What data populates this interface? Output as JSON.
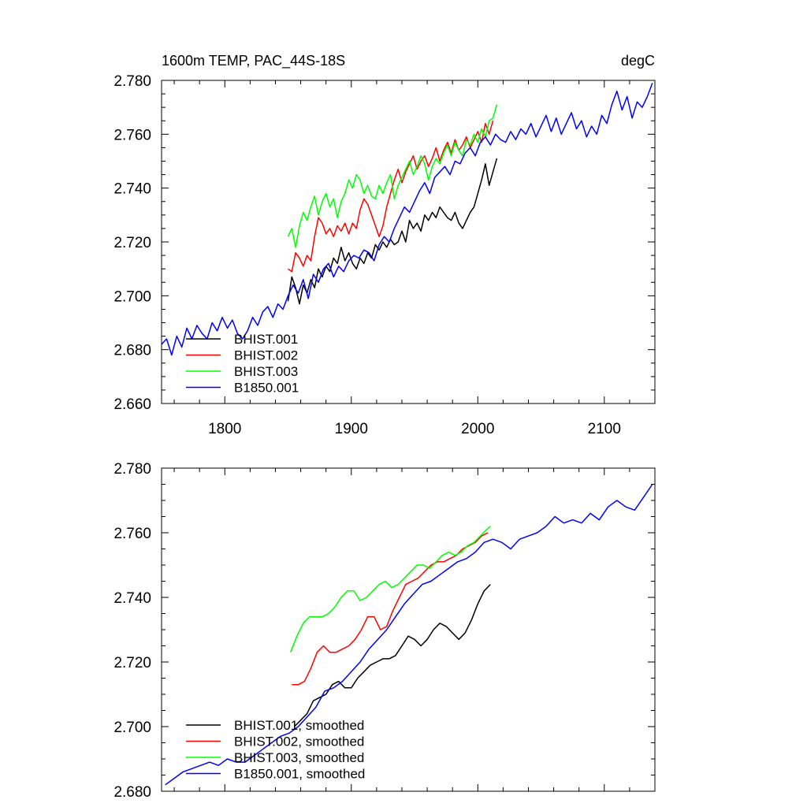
{
  "chart_data": [
    {
      "type": "line",
      "title_left": "1600m TEMP, PAC_44S-18S",
      "title_right": "degC",
      "xlabel": "",
      "ylabel": "",
      "xlim": [
        1750,
        2140
      ],
      "ylim": [
        2.66,
        2.78
      ],
      "xticks": [
        1800,
        1900,
        2000,
        2100
      ],
      "xtick_labels": [
        "1800",
        "1900",
        "2000",
        "2100"
      ],
      "yticks": [
        2.66,
        2.68,
        2.7,
        2.72,
        2.74,
        2.76,
        2.78
      ],
      "ytick_labels": [
        "2.660",
        "2.680",
        "2.700",
        "2.720",
        "2.740",
        "2.760",
        "2.780"
      ],
      "grid": false,
      "legend_position": "bottom-left",
      "series": [
        {
          "name": "BHIST.001",
          "color": "#000000",
          "x": [
            1850,
            1853,
            1856,
            1859,
            1862,
            1865,
            1868,
            1871,
            1874,
            1877,
            1880,
            1883,
            1886,
            1889,
            1892,
            1895,
            1898,
            1901,
            1904,
            1907,
            1910,
            1913,
            1916,
            1919,
            1922,
            1925,
            1928,
            1931,
            1934,
            1937,
            1940,
            1943,
            1946,
            1949,
            1952,
            1955,
            1958,
            1961,
            1964,
            1967,
            1970,
            1973,
            1976,
            1979,
            1982,
            1985,
            1988,
            1991,
            1994,
            1997,
            2000,
            2003,
            2006,
            2009,
            2012,
            2015
          ],
          "y": [
            2.698,
            2.707,
            2.703,
            2.697,
            2.704,
            2.701,
            2.706,
            2.703,
            2.71,
            2.707,
            2.711,
            2.709,
            2.714,
            2.712,
            2.718,
            2.713,
            2.716,
            2.712,
            2.71,
            2.714,
            2.712,
            2.716,
            2.714,
            2.719,
            2.717,
            2.72,
            2.718,
            2.721,
            2.719,
            2.72,
            2.724,
            2.72,
            2.728,
            2.725,
            2.727,
            2.724,
            2.73,
            2.728,
            2.731,
            2.729,
            2.733,
            2.731,
            2.729,
            2.728,
            2.731,
            2.727,
            2.725,
            2.728,
            2.731,
            2.733,
            2.738,
            2.743,
            2.749,
            2.741,
            2.746,
            2.751
          ]
        },
        {
          "name": "BHIST.002",
          "color": "#ff0000",
          "x": [
            1850,
            1853,
            1856,
            1859,
            1862,
            1865,
            1868,
            1871,
            1874,
            1877,
            1880,
            1883,
            1886,
            1889,
            1892,
            1895,
            1898,
            1901,
            1904,
            1907,
            1910,
            1913,
            1916,
            1919,
            1922,
            1925,
            1928,
            1931,
            1934,
            1937,
            1940,
            1943,
            1946,
            1949,
            1952,
            1955,
            1958,
            1961,
            1964,
            1967,
            1970,
            1973,
            1976,
            1979,
            1982,
            1985,
            1988,
            1991,
            1994,
            1997,
            2000,
            2003,
            2006,
            2009,
            2012
          ],
          "y": [
            2.71,
            2.709,
            2.716,
            2.714,
            2.711,
            2.715,
            2.713,
            2.722,
            2.729,
            2.727,
            2.723,
            2.725,
            2.722,
            2.726,
            2.724,
            2.727,
            2.723,
            2.727,
            2.725,
            2.732,
            2.736,
            2.734,
            2.73,
            2.726,
            2.722,
            2.726,
            2.733,
            2.738,
            2.743,
            2.747,
            2.742,
            2.746,
            2.749,
            2.752,
            2.747,
            2.75,
            2.752,
            2.748,
            2.751,
            2.755,
            2.75,
            2.754,
            2.757,
            2.753,
            2.758,
            2.754,
            2.756,
            2.759,
            2.755,
            2.758,
            2.761,
            2.757,
            2.764,
            2.76,
            2.765
          ]
        },
        {
          "name": "BHIST.003",
          "color": "#00ff00",
          "x": [
            1850,
            1853,
            1856,
            1859,
            1862,
            1865,
            1868,
            1871,
            1874,
            1877,
            1880,
            1883,
            1886,
            1889,
            1892,
            1895,
            1898,
            1901,
            1904,
            1907,
            1910,
            1913,
            1916,
            1919,
            1922,
            1925,
            1928,
            1931,
            1934,
            1937,
            1940,
            1943,
            1946,
            1949,
            1952,
            1955,
            1958,
            1961,
            1964,
            1967,
            1970,
            1973,
            1976,
            1979,
            1982,
            1985,
            1988,
            1991,
            1994,
            1997,
            2000,
            2003,
            2006,
            2009,
            2012,
            2015
          ],
          "y": [
            2.722,
            2.725,
            2.718,
            2.726,
            2.731,
            2.728,
            2.733,
            2.737,
            2.73,
            2.735,
            2.738,
            2.733,
            2.736,
            2.729,
            2.735,
            2.738,
            2.743,
            2.74,
            2.745,
            2.743,
            2.738,
            2.741,
            2.737,
            2.736,
            2.741,
            2.738,
            2.742,
            2.745,
            2.736,
            2.741,
            2.744,
            2.747,
            2.75,
            2.745,
            2.748,
            2.752,
            2.749,
            2.743,
            2.748,
            2.751,
            2.749,
            2.753,
            2.756,
            2.752,
            2.757,
            2.754,
            2.752,
            2.758,
            2.756,
            2.76,
            2.757,
            2.762,
            2.759,
            2.765,
            2.766,
            2.771
          ]
        },
        {
          "name": "B1850.001",
          "color": "#0000ff",
          "x": [
            1750,
            1754,
            1758,
            1762,
            1766,
            1770,
            1774,
            1778,
            1782,
            1786,
            1790,
            1794,
            1798,
            1802,
            1806,
            1810,
            1814,
            1818,
            1822,
            1826,
            1830,
            1834,
            1838,
            1842,
            1846,
            1850,
            1854,
            1858,
            1862,
            1866,
            1870,
            1874,
            1878,
            1882,
            1886,
            1890,
            1894,
            1898,
            1902,
            1906,
            1910,
            1914,
            1918,
            1922,
            1926,
            1930,
            1934,
            1938,
            1942,
            1946,
            1950,
            1954,
            1958,
            1962,
            1966,
            1970,
            1974,
            1978,
            1982,
            1986,
            1990,
            1994,
            1998,
            2002,
            2006,
            2010,
            2014,
            2018,
            2022,
            2026,
            2030,
            2034,
            2038,
            2042,
            2046,
            2050,
            2054,
            2058,
            2062,
            2066,
            2070,
            2074,
            2078,
            2082,
            2086,
            2090,
            2094,
            2098,
            2102,
            2106,
            2110,
            2114,
            2118,
            2122,
            2126,
            2130,
            2134,
            2138
          ],
          "y": [
            2.682,
            2.684,
            2.678,
            2.685,
            2.681,
            2.688,
            2.684,
            2.689,
            2.686,
            2.684,
            2.69,
            2.687,
            2.692,
            2.688,
            2.691,
            2.686,
            2.684,
            2.687,
            2.692,
            2.689,
            2.694,
            2.696,
            2.692,
            2.697,
            2.695,
            2.7,
            2.704,
            2.701,
            2.706,
            2.699,
            2.708,
            2.705,
            2.71,
            2.712,
            2.707,
            2.711,
            2.709,
            2.713,
            2.715,
            2.714,
            2.717,
            2.716,
            2.713,
            2.719,
            2.722,
            2.72,
            2.725,
            2.729,
            2.733,
            2.731,
            2.735,
            2.739,
            2.742,
            2.738,
            2.744,
            2.746,
            2.748,
            2.745,
            2.75,
            2.749,
            2.753,
            2.755,
            2.752,
            2.757,
            2.759,
            2.756,
            2.76,
            2.758,
            2.757,
            2.761,
            2.758,
            2.762,
            2.76,
            2.764,
            2.759,
            2.763,
            2.767,
            2.761,
            2.766,
            2.76,
            2.764,
            2.768,
            2.762,
            2.765,
            2.759,
            2.763,
            2.76,
            2.767,
            2.764,
            2.771,
            2.776,
            2.769,
            2.774,
            2.766,
            2.772,
            2.77,
            2.774,
            2.779
          ]
        }
      ]
    },
    {
      "type": "line",
      "title_left": "",
      "title_right": "",
      "xlabel": "",
      "ylabel": "",
      "xlim": [
        1750,
        2140
      ],
      "ylim": [
        2.68,
        2.78
      ],
      "xticks": [
        1800,
        1900,
        2000,
        2100
      ],
      "xtick_labels": [
        "",
        "",
        "",
        ""
      ],
      "yticks": [
        2.68,
        2.7,
        2.72,
        2.74,
        2.76,
        2.78
      ],
      "ytick_labels": [
        "2.680",
        "2.700",
        "2.720",
        "2.740",
        "2.760",
        "2.780"
      ],
      "grid": false,
      "legend_position": "bottom-left",
      "series": [
        {
          "name": "BHIST.001, smoothed",
          "color": "#000000",
          "x": [
            1855,
            1860,
            1865,
            1870,
            1875,
            1880,
            1885,
            1890,
            1895,
            1900,
            1905,
            1910,
            1915,
            1920,
            1925,
            1930,
            1935,
            1940,
            1945,
            1950,
            1955,
            1960,
            1965,
            1970,
            1975,
            1980,
            1985,
            1990,
            1995,
            2000,
            2005,
            2010
          ],
          "y": [
            2.7,
            2.702,
            2.704,
            2.708,
            2.709,
            2.71,
            2.713,
            2.714,
            2.712,
            2.712,
            2.715,
            2.717,
            2.719,
            2.72,
            2.721,
            2.721,
            2.722,
            2.725,
            2.728,
            2.727,
            2.725,
            2.727,
            2.73,
            2.732,
            2.731,
            2.729,
            2.727,
            2.729,
            2.733,
            2.738,
            2.742,
            2.744
          ]
        },
        {
          "name": "BHIST.002, smoothed",
          "color": "#ff0000",
          "x": [
            1853,
            1858,
            1863,
            1868,
            1873,
            1878,
            1883,
            1888,
            1893,
            1898,
            1903,
            1908,
            1913,
            1918,
            1923,
            1928,
            1933,
            1938,
            1943,
            1948,
            1953,
            1958,
            1963,
            1968,
            1973,
            1978,
            1983,
            1988,
            1993,
            1998,
            2003,
            2008
          ],
          "y": [
            2.713,
            2.713,
            2.714,
            2.718,
            2.723,
            2.725,
            2.723,
            2.723,
            2.724,
            2.725,
            2.727,
            2.73,
            2.734,
            2.734,
            2.73,
            2.731,
            2.736,
            2.74,
            2.744,
            2.745,
            2.746,
            2.748,
            2.75,
            2.751,
            2.751,
            2.752,
            2.753,
            2.755,
            2.756,
            2.757,
            2.759,
            2.76
          ]
        },
        {
          "name": "BHIST.003, smoothed",
          "color": "#00ff00",
          "x": [
            1852,
            1857,
            1862,
            1867,
            1872,
            1877,
            1882,
            1887,
            1892,
            1897,
            1902,
            1907,
            1912,
            1917,
            1922,
            1927,
            1932,
            1937,
            1942,
            1947,
            1952,
            1957,
            1962,
            1967,
            1972,
            1977,
            1982,
            1987,
            1992,
            1997,
            2002,
            2007,
            2010
          ],
          "y": [
            2.723,
            2.728,
            2.732,
            2.734,
            2.734,
            2.734,
            2.735,
            2.737,
            2.74,
            2.742,
            2.742,
            2.739,
            2.74,
            2.742,
            2.744,
            2.745,
            2.743,
            2.744,
            2.746,
            2.748,
            2.75,
            2.75,
            2.749,
            2.751,
            2.753,
            2.754,
            2.753,
            2.754,
            2.756,
            2.757,
            2.759,
            2.761,
            2.762
          ]
        },
        {
          "name": "B1850.001, smoothed",
          "color": "#0000ff",
          "x": [
            1753,
            1760,
            1767,
            1774,
            1781,
            1788,
            1795,
            1802,
            1809,
            1816,
            1823,
            1830,
            1837,
            1844,
            1851,
            1858,
            1865,
            1872,
            1879,
            1886,
            1893,
            1900,
            1907,
            1914,
            1921,
            1928,
            1935,
            1942,
            1949,
            1956,
            1963,
            1970,
            1977,
            1984,
            1991,
            1998,
            2005,
            2012,
            2019,
            2026,
            2033,
            2040,
            2047,
            2054,
            2061,
            2068,
            2075,
            2082,
            2089,
            2096,
            2103,
            2110,
            2117,
            2124,
            2131,
            2138
          ],
          "y": [
            2.682,
            2.684,
            2.686,
            2.687,
            2.688,
            2.689,
            2.688,
            2.69,
            2.689,
            2.689,
            2.691,
            2.693,
            2.695,
            2.697,
            2.698,
            2.7,
            2.703,
            2.706,
            2.711,
            2.712,
            2.714,
            2.717,
            2.72,
            2.724,
            2.727,
            2.73,
            2.734,
            2.738,
            2.741,
            2.744,
            2.745,
            2.747,
            2.749,
            2.751,
            2.752,
            2.754,
            2.757,
            2.758,
            2.757,
            2.755,
            2.758,
            2.759,
            2.76,
            2.762,
            2.765,
            2.763,
            2.764,
            2.763,
            2.766,
            2.764,
            2.768,
            2.77,
            2.768,
            2.767,
            2.771,
            2.775
          ]
        }
      ]
    }
  ]
}
